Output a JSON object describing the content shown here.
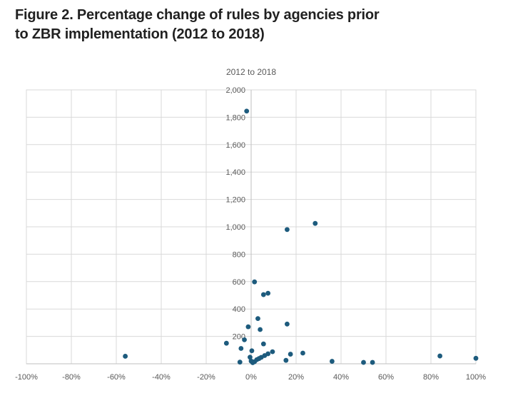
{
  "figure": {
    "title_lines": [
      "Figure 2. Percentage change of rules by agencies prior",
      "to ZBR implementation (2012 to 2018)"
    ]
  },
  "chart_data": {
    "type": "scatter",
    "title": "Figure 2. Percentage change of rules by agencies prior to ZBR implementation (2012 to 2018)",
    "subtitle": "2012 to 2018",
    "xlabel": "",
    "ylabel": "",
    "xlim": [
      -100,
      100
    ],
    "ylim": [
      0,
      2000
    ],
    "grid": true,
    "legend_position": "none",
    "x_tick_values": [
      -100,
      -80,
      -60,
      -40,
      -20,
      0,
      20,
      40,
      60,
      80,
      100
    ],
    "x_tick_labels": [
      "-100%",
      "-80%",
      "-60%",
      "-40%",
      "-20%",
      "0%",
      "20%",
      "40%",
      "60%",
      "80%",
      "100%"
    ],
    "y_tick_values": [
      200,
      400,
      600,
      800,
      1000,
      1200,
      1400,
      1600,
      1800,
      2000
    ],
    "y_tick_labels": [
      "200",
      "400",
      "600",
      "800",
      "1,000",
      "1,200",
      "1,400",
      "1,600",
      "1,800",
      "2,000"
    ],
    "points": [
      [
        -56,
        55
      ],
      [
        -11,
        150
      ],
      [
        -5,
        12
      ],
      [
        -4.5,
        112
      ],
      [
        -3,
        175
      ],
      [
        -2,
        1845
      ],
      [
        -1.3,
        270
      ],
      [
        -0.5,
        48
      ],
      [
        0,
        20
      ],
      [
        0.3,
        95
      ],
      [
        0.7,
        8
      ],
      [
        1.5,
        598
      ],
      [
        1.5,
        15
      ],
      [
        2.5,
        30
      ],
      [
        3,
        330
      ],
      [
        3.5,
        38
      ],
      [
        4,
        250
      ],
      [
        4.5,
        47
      ],
      [
        5.5,
        505
      ],
      [
        5.5,
        145
      ],
      [
        6,
        60
      ],
      [
        7.5,
        515
      ],
      [
        7.5,
        73
      ],
      [
        9.5,
        88
      ],
      [
        15.5,
        25
      ],
      [
        16,
        290
      ],
      [
        16,
        980
      ],
      [
        17.5,
        70
      ],
      [
        23,
        78
      ],
      [
        28.5,
        1025
      ],
      [
        36,
        18
      ],
      [
        50,
        10
      ],
      [
        54,
        10
      ],
      [
        84,
        57
      ],
      [
        100,
        40
      ]
    ],
    "colors": {
      "point": "#1d5b7d",
      "gridline": "#d9d9d9",
      "axis": "#bfbfbf",
      "tick_text": "#595959",
      "title_text": "#212121",
      "subtitle_text": "#595959"
    }
  }
}
